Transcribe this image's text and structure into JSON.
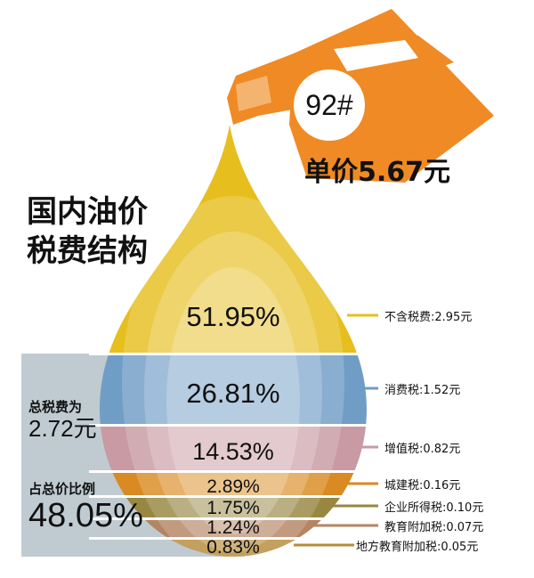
{
  "title_line1": "国内油价",
  "title_line2": "税费结构",
  "jug": {
    "grade": "92#",
    "unit_price": "单价5.67元"
  },
  "summary": {
    "total_tax_label": "总税费为",
    "total_tax_value": "2.72元",
    "ratio_label": "占总价比例",
    "ratio_value": "48.05%"
  },
  "chart_data": {
    "type": "stacked-proportion",
    "title": "国内油价税费结构",
    "unit": "元",
    "categories": [
      "不含税费",
      "消费税",
      "增值税",
      "城建税",
      "企业所得税",
      "教育附加税",
      "地方教育附加税"
    ],
    "values": [
      2.95,
      1.52,
      0.82,
      0.16,
      0.1,
      0.07,
      0.05
    ],
    "percent": [
      51.95,
      26.81,
      14.53,
      2.89,
      1.75,
      1.24,
      0.83
    ],
    "percent_labels": [
      "51.95%",
      "26.81%",
      "14.53%",
      "2.89%",
      "1.75%",
      "1.24%",
      "0.83%"
    ],
    "legend_labels": [
      "不含税费:2.95元",
      "消费税:1.52元",
      "增值税:0.82元",
      "城建税:0.16元",
      "企业所得税:0.10元",
      "教育附加税:0.07元",
      "地方教育附加税:0.05元"
    ],
    "colors": [
      "#e6bf1e",
      "#6f9dc6",
      "#c99aa3",
      "#d98a22",
      "#978741",
      "#b58463",
      "#b78c3c"
    ]
  }
}
